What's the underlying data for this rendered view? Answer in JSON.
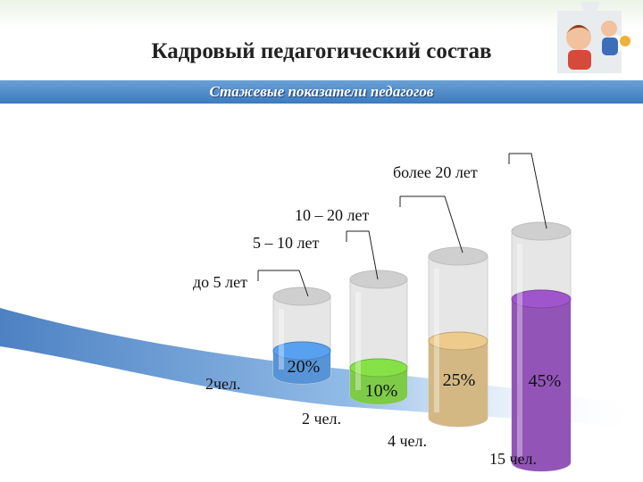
{
  "header": {
    "title": "Кадровый педагогический состав",
    "subtitle": "Стажевые показатели педагогов"
  },
  "decor": {
    "image_icon": "puzzle-children-image"
  },
  "colors": {
    "accent_band": "#4a86c8",
    "glass": "#d8d8d8",
    "wave": "#3c78c2"
  },
  "chart_data": {
    "type": "bar",
    "title": "",
    "categories": [
      "до 5 лет",
      "5 – 10 лет",
      "10 – 20 лет",
      "более 20 лет"
    ],
    "values": [
      20,
      10,
      25,
      45
    ],
    "value_labels": [
      "20%",
      "10%",
      "25%",
      "45%"
    ],
    "counts": [
      "2чел.",
      "2 чел.",
      "4 чел.",
      "15 чел."
    ],
    "colors": [
      "#4f8fd6",
      "#78c93f",
      "#d3b57e",
      "#8e4cb5"
    ],
    "ylim": [
      0,
      100
    ],
    "grid": false,
    "legend": "none"
  }
}
